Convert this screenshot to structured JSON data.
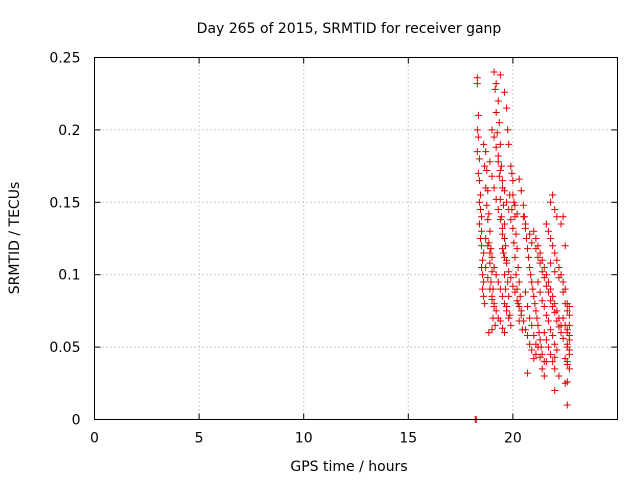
{
  "chart_data": {
    "type": "scatter",
    "title": "Day 265 of 2015, SRMTID for receiver ganp",
    "xlabel": "GPS time / hours",
    "ylabel": "SRMTID / TECUs",
    "xlim": [
      0,
      25
    ],
    "ylim": [
      0,
      0.25
    ],
    "xticks": [
      0,
      5,
      10,
      15,
      20
    ],
    "xtick_labels": [
      "0",
      "5",
      "10",
      "15",
      "20"
    ],
    "yticks": [
      0,
      0.05,
      0.1,
      0.15,
      0.2,
      0.25
    ],
    "ytick_labels": [
      "0",
      "0.05",
      "0.1",
      "0.15",
      "0.2",
      "0.25"
    ],
    "grid": true,
    "marker": "+",
    "color": "#e00000",
    "series": [
      {
        "name": "SRMTID",
        "points": [
          [
            18.2,
            0.0
          ],
          [
            18.25,
            0.0
          ],
          [
            18.3,
            0.236
          ],
          [
            18.3,
            0.232
          ],
          [
            18.35,
            0.21
          ],
          [
            18.3,
            0.2
          ],
          [
            18.35,
            0.195
          ],
          [
            18.3,
            0.185
          ],
          [
            18.4,
            0.18
          ],
          [
            18.35,
            0.17
          ],
          [
            18.4,
            0.165
          ],
          [
            18.45,
            0.155
          ],
          [
            18.4,
            0.15
          ],
          [
            18.45,
            0.145
          ],
          [
            18.5,
            0.14
          ],
          [
            18.4,
            0.135
          ],
          [
            18.5,
            0.13
          ],
          [
            18.45,
            0.125
          ],
          [
            18.5,
            0.12
          ],
          [
            18.55,
            0.11
          ],
          [
            18.5,
            0.105
          ],
          [
            18.55,
            0.1
          ],
          [
            18.6,
            0.095
          ],
          [
            18.55,
            0.09
          ],
          [
            18.6,
            0.085
          ],
          [
            18.65,
            0.08
          ],
          [
            18.6,
            0.19
          ],
          [
            18.7,
            0.185
          ],
          [
            18.65,
            0.175
          ],
          [
            18.75,
            0.172
          ],
          [
            18.7,
            0.16
          ],
          [
            18.8,
            0.158
          ],
          [
            18.75,
            0.148
          ],
          [
            18.85,
            0.142
          ],
          [
            18.8,
            0.138
          ],
          [
            18.9,
            0.13
          ],
          [
            18.85,
            0.122
          ],
          [
            18.95,
            0.118
          ],
          [
            18.9,
            0.108
          ],
          [
            19.0,
            0.102
          ],
          [
            18.95,
            0.095
          ],
          [
            19.05,
            0.09
          ],
          [
            19.0,
            0.083
          ],
          [
            19.1,
            0.078
          ],
          [
            19.05,
            0.07
          ],
          [
            19.15,
            0.065
          ],
          [
            18.85,
            0.06
          ],
          [
            19.0,
            0.062
          ],
          [
            19.1,
            0.24
          ],
          [
            19.2,
            0.232
          ],
          [
            19.15,
            0.228
          ],
          [
            19.3,
            0.22
          ],
          [
            19.2,
            0.212
          ],
          [
            19.35,
            0.205
          ],
          [
            19.25,
            0.198
          ],
          [
            19.4,
            0.19
          ],
          [
            19.3,
            0.182
          ],
          [
            19.45,
            0.175
          ],
          [
            19.35,
            0.168
          ],
          [
            19.5,
            0.16
          ],
          [
            19.4,
            0.152
          ],
          [
            19.55,
            0.148
          ],
          [
            19.45,
            0.14
          ],
          [
            19.6,
            0.135
          ],
          [
            19.5,
            0.128
          ],
          [
            19.65,
            0.12
          ],
          [
            19.55,
            0.115
          ],
          [
            19.7,
            0.11
          ],
          [
            19.6,
            0.1
          ],
          [
            19.75,
            0.095
          ],
          [
            19.65,
            0.09
          ],
          [
            19.8,
            0.085
          ],
          [
            19.7,
            0.078
          ],
          [
            19.85,
            0.072
          ],
          [
            19.4,
            0.238
          ],
          [
            19.6,
            0.226
          ],
          [
            19.7,
            0.215
          ],
          [
            19.75,
            0.2
          ],
          [
            19.8,
            0.19
          ],
          [
            19.9,
            0.175
          ],
          [
            19.95,
            0.17
          ],
          [
            20.0,
            0.165
          ],
          [
            19.85,
            0.155
          ],
          [
            20.05,
            0.15
          ],
          [
            19.95,
            0.145
          ],
          [
            20.1,
            0.14
          ],
          [
            20.0,
            0.132
          ],
          [
            20.15,
            0.128
          ],
          [
            20.05,
            0.122
          ],
          [
            20.2,
            0.118
          ],
          [
            20.1,
            0.112
          ],
          [
            20.25,
            0.105
          ],
          [
            20.15,
            0.1
          ],
          [
            20.3,
            0.095
          ],
          [
            20.2,
            0.09
          ],
          [
            20.35,
            0.085
          ],
          [
            20.25,
            0.08
          ],
          [
            20.4,
            0.075
          ],
          [
            20.3,
            0.068
          ],
          [
            20.45,
            0.062
          ],
          [
            20.3,
            0.166
          ],
          [
            20.4,
            0.158
          ],
          [
            20.5,
            0.148
          ],
          [
            20.55,
            0.14
          ],
          [
            20.6,
            0.132
          ],
          [
            20.65,
            0.125
          ],
          [
            20.7,
            0.118
          ],
          [
            20.75,
            0.112
          ],
          [
            20.8,
            0.105
          ],
          [
            20.85,
            0.1
          ],
          [
            20.9,
            0.095
          ],
          [
            20.95,
            0.09
          ],
          [
            21.0,
            0.085
          ],
          [
            21.05,
            0.08
          ],
          [
            21.1,
            0.075
          ],
          [
            21.15,
            0.07
          ],
          [
            21.2,
            0.065
          ],
          [
            21.25,
            0.06
          ],
          [
            21.3,
            0.055
          ],
          [
            21.35,
            0.05
          ],
          [
            20.6,
            0.088
          ],
          [
            20.7,
            0.078
          ],
          [
            20.8,
            0.07
          ],
          [
            20.9,
            0.065
          ],
          [
            21.0,
            0.058
          ],
          [
            21.1,
            0.052
          ],
          [
            21.0,
            0.13
          ],
          [
            21.1,
            0.125
          ],
          [
            21.2,
            0.12
          ],
          [
            21.3,
            0.115
          ],
          [
            21.4,
            0.11
          ],
          [
            21.5,
            0.105
          ],
          [
            21.6,
            0.1
          ],
          [
            21.7,
            0.095
          ],
          [
            21.8,
            0.09
          ],
          [
            21.9,
            0.085
          ],
          [
            22.0,
            0.08
          ],
          [
            22.1,
            0.075
          ],
          [
            22.2,
            0.07
          ],
          [
            22.3,
            0.065
          ],
          [
            21.2,
            0.095
          ],
          [
            21.3,
            0.088
          ],
          [
            21.4,
            0.082
          ],
          [
            21.5,
            0.078
          ],
          [
            21.6,
            0.072
          ],
          [
            21.7,
            0.068
          ],
          [
            21.8,
            0.062
          ],
          [
            21.9,
            0.058
          ],
          [
            22.0,
            0.052
          ],
          [
            22.1,
            0.048
          ],
          [
            21.4,
            0.045
          ],
          [
            21.5,
            0.04
          ],
          [
            21.5,
            0.06
          ],
          [
            21.6,
            0.055
          ],
          [
            21.7,
            0.05
          ],
          [
            21.8,
            0.045
          ],
          [
            21.9,
            0.04
          ],
          [
            22.0,
            0.035
          ],
          [
            21.4,
            0.035
          ],
          [
            21.6,
            0.04
          ],
          [
            21.2,
            0.05
          ],
          [
            21.3,
            0.043
          ],
          [
            21.5,
            0.03
          ],
          [
            22.0,
            0.043
          ],
          [
            21.6,
            0.135
          ],
          [
            21.7,
            0.13
          ],
          [
            21.8,
            0.125
          ],
          [
            21.9,
            0.12
          ],
          [
            22.0,
            0.115
          ],
          [
            22.1,
            0.11
          ],
          [
            22.2,
            0.105
          ],
          [
            22.3,
            0.1
          ],
          [
            22.4,
            0.095
          ],
          [
            22.5,
            0.09
          ],
          [
            21.8,
            0.108
          ],
          [
            22.0,
            0.102
          ],
          [
            22.2,
            0.098
          ],
          [
            22.4,
            0.088
          ],
          [
            22.5,
            0.08
          ],
          [
            22.6,
            0.075
          ],
          [
            22.4,
            0.07
          ],
          [
            22.5,
            0.065
          ],
          [
            22.6,
            0.06
          ],
          [
            22.7,
            0.055
          ],
          [
            22.6,
            0.05
          ],
          [
            22.7,
            0.045
          ],
          [
            22.6,
            0.04
          ],
          [
            22.7,
            0.035
          ],
          [
            22.4,
            0.14
          ],
          [
            22.5,
            0.12
          ],
          [
            22.6,
            0.08
          ],
          [
            22.7,
            0.078
          ],
          [
            22.7,
            0.072
          ],
          [
            22.7,
            0.065
          ],
          [
            22.6,
            0.062
          ],
          [
            22.7,
            0.058
          ],
          [
            22.6,
            0.052
          ],
          [
            22.7,
            0.048
          ],
          [
            22.5,
            0.042
          ],
          [
            22.6,
            0.038
          ],
          [
            22.5,
            0.025
          ],
          [
            22.6,
            0.026
          ],
          [
            22.6,
            0.01
          ],
          [
            22.2,
            0.03
          ],
          [
            22.0,
            0.02
          ],
          [
            21.8,
            0.15
          ],
          [
            22.0,
            0.145
          ],
          [
            22.1,
            0.14
          ],
          [
            22.3,
            0.135
          ],
          [
            21.9,
            0.155
          ],
          [
            20.0,
            0.155
          ],
          [
            20.1,
            0.148
          ],
          [
            20.2,
            0.142
          ],
          [
            20.5,
            0.14
          ],
          [
            20.6,
            0.135
          ],
          [
            20.8,
            0.128
          ],
          [
            20.9,
            0.122
          ],
          [
            21.1,
            0.118
          ],
          [
            21.2,
            0.112
          ],
          [
            21.3,
            0.108
          ],
          [
            21.4,
            0.102
          ],
          [
            21.5,
            0.098
          ],
          [
            21.6,
            0.092
          ],
          [
            21.7,
            0.088
          ],
          [
            21.8,
            0.082
          ],
          [
            21.9,
            0.078
          ],
          [
            22.0,
            0.074
          ],
          [
            22.1,
            0.068
          ],
          [
            22.2,
            0.064
          ],
          [
            22.3,
            0.06
          ],
          [
            22.4,
            0.056
          ],
          [
            19.5,
            0.118
          ],
          [
            19.6,
            0.112
          ],
          [
            19.7,
            0.108
          ],
          [
            19.8,
            0.102
          ],
          [
            19.9,
            0.098
          ],
          [
            20.0,
            0.092
          ],
          [
            20.1,
            0.088
          ],
          [
            20.2,
            0.082
          ],
          [
            20.3,
            0.078
          ],
          [
            20.4,
            0.072
          ],
          [
            20.5,
            0.068
          ],
          [
            20.6,
            0.062
          ],
          [
            20.7,
            0.058
          ],
          [
            20.8,
            0.052
          ],
          [
            20.9,
            0.048
          ],
          [
            21.0,
            0.042
          ],
          [
            21.1,
            0.045
          ],
          [
            20.7,
            0.032
          ],
          [
            18.7,
            0.125
          ],
          [
            18.8,
            0.12
          ],
          [
            18.9,
            0.115
          ],
          [
            19.0,
            0.112
          ],
          [
            19.1,
            0.105
          ],
          [
            19.2,
            0.1
          ],
          [
            19.3,
            0.095
          ],
          [
            19.4,
            0.09
          ],
          [
            19.5,
            0.085
          ],
          [
            19.6,
            0.08
          ],
          [
            19.7,
            0.075
          ],
          [
            19.8,
            0.07
          ],
          [
            19.9,
            0.065
          ],
          [
            18.6,
            0.115
          ],
          [
            18.7,
            0.105
          ],
          [
            18.8,
            0.098
          ],
          [
            18.9,
            0.09
          ],
          [
            19.0,
            0.085
          ],
          [
            19.1,
            0.08
          ],
          [
            19.2,
            0.075
          ],
          [
            19.3,
            0.07
          ],
          [
            19.4,
            0.068
          ],
          [
            19.5,
            0.063
          ],
          [
            19.6,
            0.06
          ],
          [
            19.0,
            0.2
          ],
          [
            19.1,
            0.195
          ],
          [
            19.2,
            0.188
          ],
          [
            19.3,
            0.178
          ],
          [
            19.4,
            0.172
          ],
          [
            19.5,
            0.165
          ],
          [
            19.6,
            0.158
          ],
          [
            19.7,
            0.15
          ],
          [
            19.8,
            0.145
          ],
          [
            19.9,
            0.138
          ],
          [
            18.9,
            0.178
          ],
          [
            19.0,
            0.168
          ],
          [
            19.1,
            0.16
          ],
          [
            19.2,
            0.152
          ],
          [
            19.3,
            0.145
          ],
          [
            19.4,
            0.138
          ],
          [
            19.5,
            0.132
          ],
          [
            19.6,
            0.125
          ]
        ]
      }
    ]
  }
}
